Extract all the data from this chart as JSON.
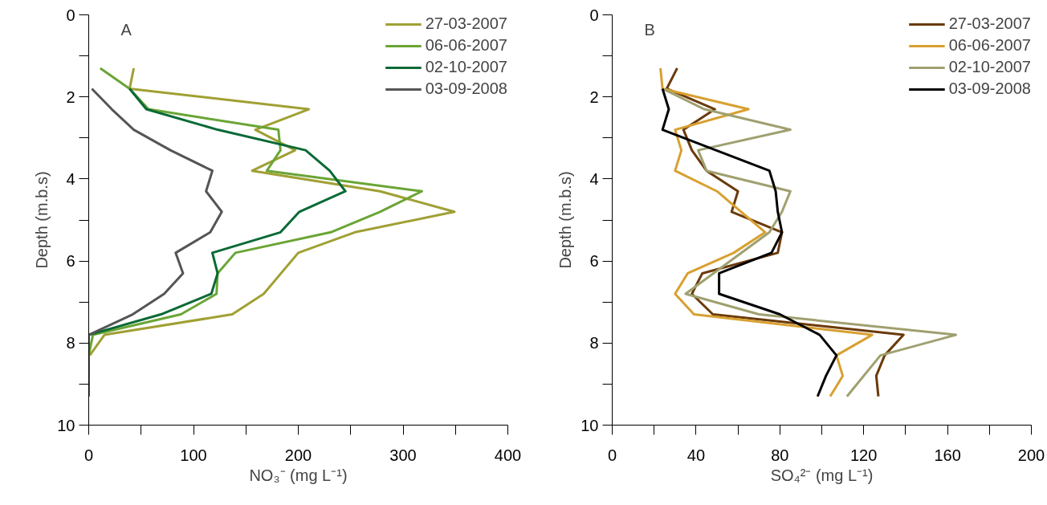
{
  "chart_data": [
    {
      "type": "line",
      "annotations": [
        "A"
      ],
      "xlabel": "NO₃⁻ (mg L⁻¹)",
      "ylabel": "Depth (m.b.s)",
      "xlim": [
        0,
        400
      ],
      "ylim": [
        10,
        0
      ],
      "xticks": [
        0,
        {
          "value": 50,
          "label": null
        },
        100,
        {
          "value": 150,
          "label": null
        },
        200,
        {
          "value": 250,
          "label": null
        },
        300,
        {
          "value": 350,
          "label": null
        },
        400
      ],
      "yticks": [
        0,
        {
          "value": 1,
          "label": null
        },
        2,
        {
          "value": 3,
          "label": null
        },
        4,
        {
          "value": 5,
          "label": null
        },
        6,
        {
          "value": 7,
          "label": null
        },
        8,
        {
          "value": 9,
          "label": null
        },
        10
      ],
      "grid": false,
      "legend": "top right",
      "series": [
        {
          "name": "27-03-2007",
          "color": "#a0a034",
          "x": [
            43,
            39,
            210,
            159,
            197,
            156,
            278,
            349,
            254,
            200,
            167,
            137,
            15,
            1
          ],
          "values": [
            1.3,
            1.8,
            2.3,
            2.8,
            3.3,
            3.8,
            4.3,
            4.8,
            5.3,
            5.8,
            6.8,
            7.3,
            7.8,
            8.3
          ]
        },
        {
          "name": "06-06-2007",
          "color": "#6aa535",
          "x": [
            11,
            39,
            57,
            181,
            183,
            170,
            318,
            278,
            231,
            140,
            123,
            122,
            88,
            4,
            0
          ],
          "values": [
            1.3,
            1.8,
            2.3,
            2.8,
            3.3,
            3.8,
            4.3,
            4.8,
            5.3,
            5.8,
            6.3,
            6.8,
            7.3,
            7.8,
            8.3
          ]
        },
        {
          "name": "02-10-2007",
          "color": "#0a6a35",
          "x": [
            39,
            55,
            123,
            207,
            230,
            245,
            201,
            183,
            118,
            123,
            117,
            69,
            0
          ],
          "values": [
            1.8,
            2.3,
            2.8,
            3.3,
            3.8,
            4.3,
            4.8,
            5.3,
            5.8,
            6.3,
            6.8,
            7.3,
            7.8
          ]
        },
        {
          "name": "03-09-2008",
          "color": "#555555",
          "x": [
            3,
            22,
            43,
            78,
            118,
            112,
            127,
            116,
            83,
            90,
            72,
            42,
            0,
            0,
            0,
            0
          ],
          "values": [
            1.8,
            2.3,
            2.8,
            3.3,
            3.8,
            4.3,
            4.8,
            5.3,
            5.8,
            6.3,
            6.8,
            7.3,
            7.8,
            8.3,
            8.8,
            9.3
          ]
        }
      ]
    },
    {
      "type": "line",
      "annotations": [
        "B"
      ],
      "xlabel": "SO₄²⁻ (mg L⁻¹)",
      "ylabel": "Depth (m.b.s)",
      "xlim": [
        0,
        200
      ],
      "ylim": [
        10,
        0
      ],
      "xticks": [
        0,
        {
          "value": 20,
          "label": null
        },
        40,
        {
          "value": 60,
          "label": null
        },
        80,
        {
          "value": 100,
          "label": null
        },
        120,
        {
          "value": 140,
          "label": null
        },
        160,
        {
          "value": 180,
          "label": null
        },
        200
      ],
      "yticks": [
        0,
        {
          "value": 1,
          "label": null
        },
        2,
        {
          "value": 3,
          "label": null
        },
        4,
        {
          "value": 5,
          "label": null
        },
        6,
        {
          "value": 7,
          "label": null
        },
        8,
        {
          "value": 9,
          "label": null
        },
        10
      ],
      "grid": false,
      "legend": "top right",
      "series": [
        {
          "name": "27-03-2007",
          "color": "#6b3a0a",
          "x": [
            31,
            26,
            49,
            34,
            38,
            45,
            60,
            57,
            81,
            79,
            43,
            38,
            48,
            139,
            130,
            126,
            127
          ],
          "values": [
            1.3,
            1.8,
            2.3,
            2.8,
            3.3,
            3.8,
            4.3,
            4.8,
            5.3,
            5.8,
            6.3,
            6.8,
            7.3,
            7.8,
            8.3,
            8.8,
            9.3
          ]
        },
        {
          "name": "06-06-2007",
          "color": "#d8a030",
          "x": [
            23,
            24,
            65,
            30,
            33,
            30,
            50,
            73,
            58,
            36,
            30,
            39,
            124,
            107,
            110,
            104
          ],
          "values": [
            1.3,
            1.8,
            2.3,
            2.8,
            3.3,
            3.8,
            4.3,
            5.3,
            5.8,
            6.3,
            6.8,
            7.3,
            7.8,
            8.3,
            8.8,
            9.3
          ]
        },
        {
          "name": "02-10-2007",
          "color": "#a0a070",
          "x": [
            24,
            44,
            85,
            41,
            45,
            85,
            81,
            75,
            35,
            70,
            164,
            128,
            112
          ],
          "values": [
            1.8,
            2.3,
            2.8,
            3.3,
            3.8,
            4.3,
            4.8,
            5.3,
            6.8,
            7.3,
            7.8,
            8.3,
            9.3
          ]
        },
        {
          "name": "03-09-2008",
          "color": "#000000",
          "x": [
            24,
            27,
            24,
            75,
            78,
            79,
            81,
            76,
            51,
            51,
            80,
            99,
            107,
            102,
            98
          ],
          "values": [
            1.8,
            2.3,
            2.8,
            3.8,
            4.3,
            4.8,
            5.3,
            5.8,
            6.3,
            6.8,
            7.3,
            7.8,
            8.3,
            8.8,
            9.3
          ]
        }
      ]
    }
  ]
}
